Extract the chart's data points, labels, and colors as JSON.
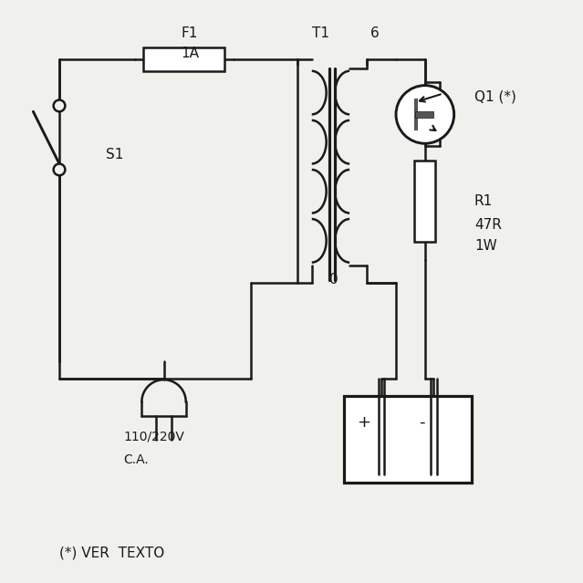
{
  "background_color": "#f0f0ec",
  "line_color": "#1a1a1a",
  "line_width": 1.8,
  "fig_size": [
    6.39,
    6.39
  ],
  "dpi": 100,
  "xlim": [
    0,
    10
  ],
  "ylim": [
    0,
    10
  ],
  "labels": {
    "F1": [
      3.1,
      9.45,
      11
    ],
    "1A": [
      3.1,
      9.1,
      11
    ],
    "T1": [
      5.35,
      9.45,
      11
    ],
    "6": [
      6.35,
      9.45,
      11
    ],
    "S1": [
      1.8,
      7.35,
      11
    ],
    "Q1 (*)": [
      8.15,
      8.35,
      11
    ],
    "R1": [
      8.15,
      6.55,
      11
    ],
    "47R": [
      8.15,
      6.15,
      11
    ],
    "1W": [
      8.15,
      5.78,
      11
    ],
    "0": [
      5.65,
      5.2,
      11
    ],
    "+": [
      6.25,
      2.75,
      13
    ],
    "-": [
      7.25,
      2.75,
      13
    ],
    "110/220V": [
      2.1,
      2.5,
      10
    ],
    "C.A.": [
      2.1,
      2.1,
      10
    ],
    "(*) VER  TEXTO": [
      1.0,
      0.5,
      11
    ]
  }
}
